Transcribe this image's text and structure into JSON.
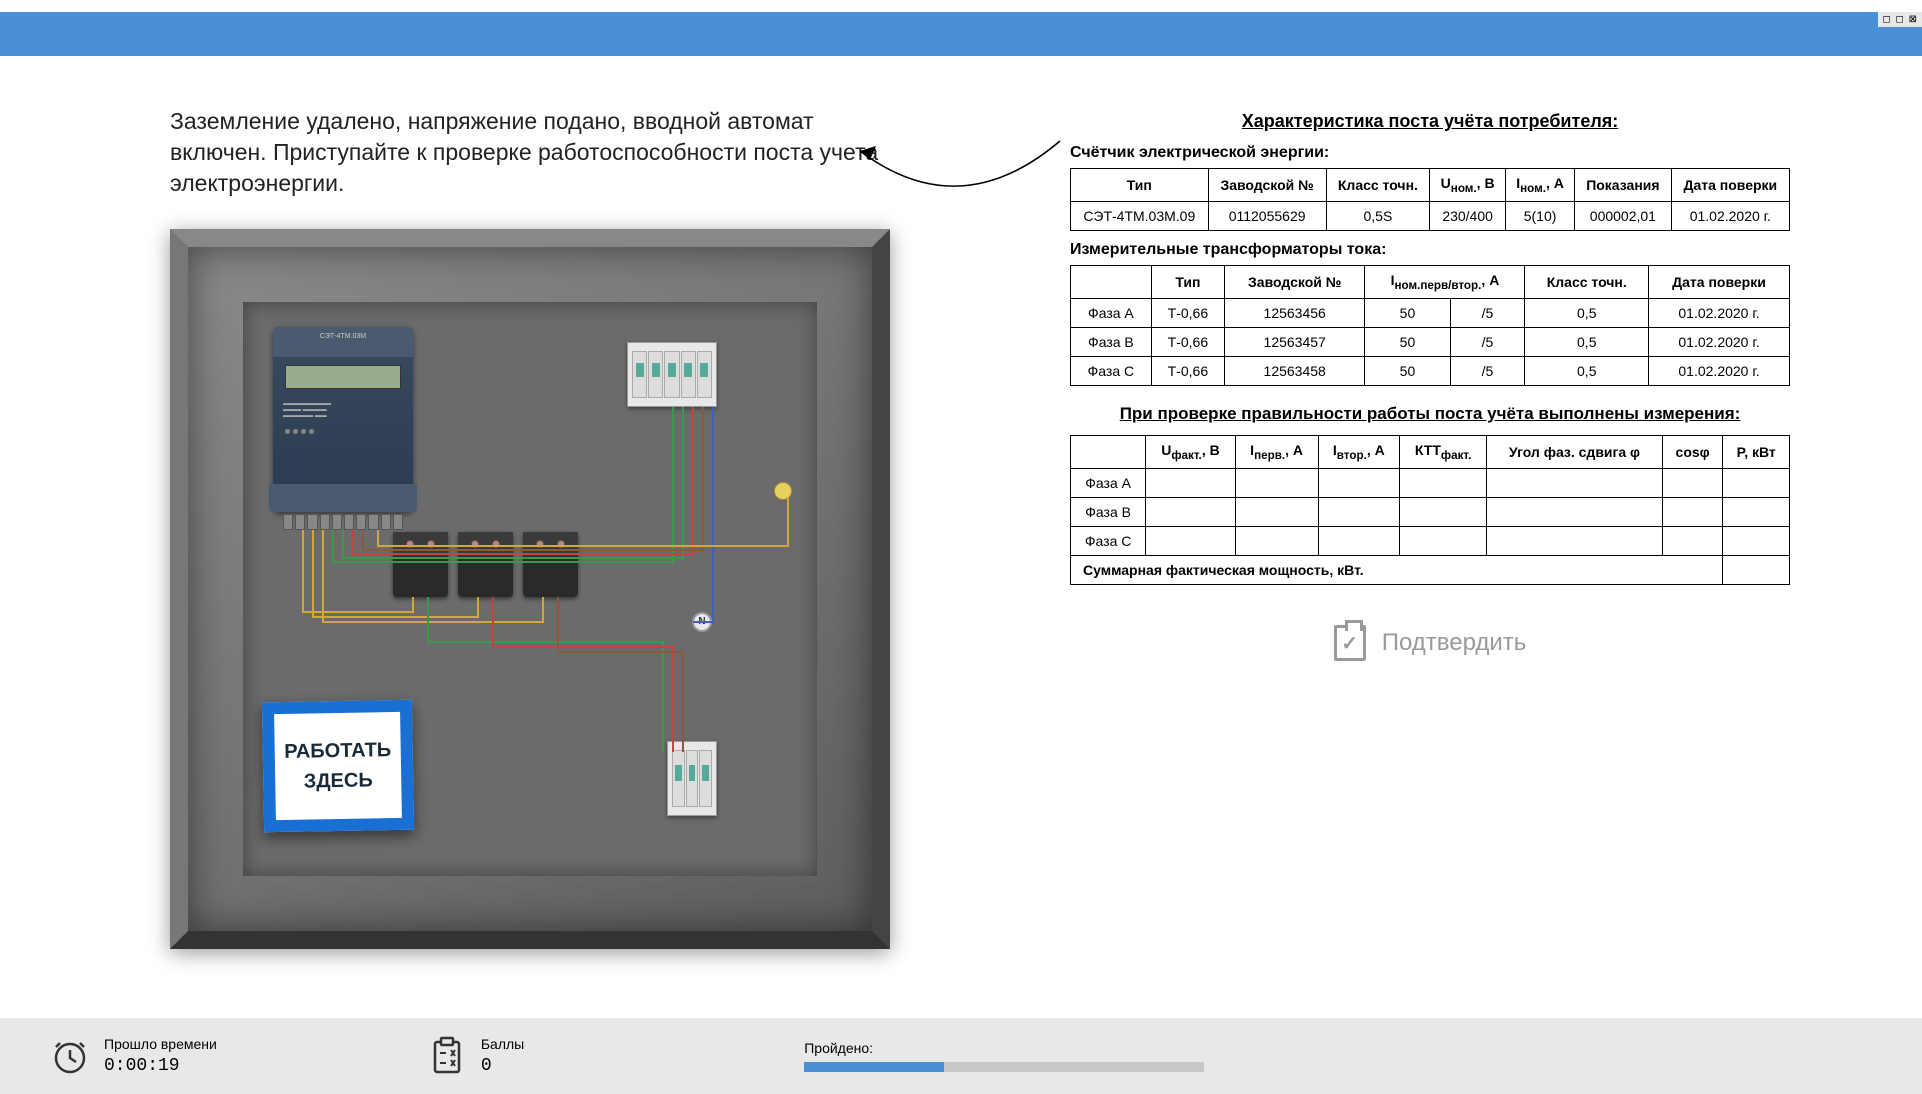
{
  "window_controls": "◻ ◻ ⊠",
  "instruction": "Заземление удалено, напряжение подано, вводной автомат включен. Приступайте к проверке работоспособности поста учета электроэнергии.",
  "warning_sign": {
    "line1": "РАБОТАТЬ",
    "line2": "ЗДЕСЬ"
  },
  "meter_model": "СЭТ-4ТМ.03М",
  "neutral_label": "N",
  "char_title": "Характеристика поста учёта потребителя:",
  "meter_section_title": "Счётчик электрической энергии:",
  "meter_table": {
    "headers": [
      "Тип",
      "Заводской №",
      "Класс точн.",
      "U<sub>ном.</sub>, В",
      "I<sub>ном.</sub>, А",
      "Показания",
      "Дата поверки"
    ],
    "row": [
      "СЭТ-4ТМ.03М.09",
      "0112055629",
      "0,5S",
      "230/400",
      "5(10)",
      "000002,01",
      "01.02.2020 г."
    ]
  },
  "ct_section_title": "Измерительные трансформаторы тока:",
  "ct_table": {
    "headers": [
      "",
      "Тип",
      "Заводской №",
      "I<sub>ном.перв/втор.</sub>, А",
      "",
      "Класс точн.",
      "Дата поверки"
    ],
    "rows": [
      [
        "Фаза А",
        "Т-0,66",
        "12563456",
        "50",
        "/5",
        "0,5",
        "01.02.2020 г."
      ],
      [
        "Фаза В",
        "Т-0,66",
        "12563457",
        "50",
        "/5",
        "0,5",
        "01.02.2020 г."
      ],
      [
        "Фаза С",
        "Т-0,66",
        "12563458",
        "50",
        "/5",
        "0,5",
        "01.02.2020 г."
      ]
    ]
  },
  "measure_title": "При проверке правильности работы поста учёта выполнены измерения:",
  "measure_table": {
    "headers": [
      "",
      "U<sub>факт.</sub>, В",
      "I<sub>перв.</sub>, А",
      "I<sub>втор.</sub>, А",
      "КТТ<sub>факт.</sub>",
      "Угол фаз. сдвига φ",
      "cosφ",
      "P, кВт"
    ],
    "phases": [
      "Фаза А",
      "Фаза В",
      "Фаза С"
    ],
    "total_label": "Суммарная фактическая мощность, кВт."
  },
  "confirm_label": "Подтвердить",
  "status": {
    "time_label": "Прошло времени",
    "time_value": "0:00:19",
    "score_label": "Баллы",
    "score_value": "0",
    "progress_label": "Пройдено:",
    "progress_percent": 35
  },
  "colors": {
    "accent": "#4a90d9",
    "cabinet": "#6b6b6b",
    "sign_border": "#1a6fd4",
    "wire_yellow": "#d4a838",
    "wire_green": "#3a9a4a",
    "wire_red": "#c84040",
    "wire_brown": "#8a5a3a",
    "wire_blue": "#4060c0"
  }
}
